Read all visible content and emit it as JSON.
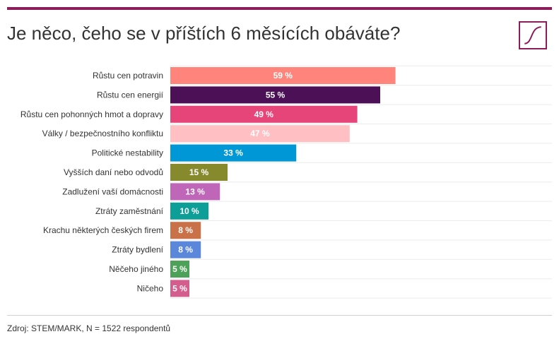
{
  "title": "Je něco, čeho se v příštích 6 měsících obáváte?",
  "source": "Zdroj: STEM/MARK, N = 1522 respondentů",
  "logo_icon": "stem-mark-logo-icon",
  "colors": {
    "accent": "#8c1d5a"
  },
  "chart_data": {
    "type": "bar",
    "orientation": "horizontal",
    "categories": [
      "Růstu cen potravin",
      "Růstu cen energií",
      "Růstu cen pohonných hmot a dopravy",
      "Války / bezpečnostního konfliktu",
      "Politické nestability",
      "Vyšších daní nebo odvodů",
      "Zadlužení vaší domácnosti",
      "Ztráty zaměstnání",
      "Krachu některých českých firem",
      "Ztráty bydlení",
      "Něčeho jiného",
      "Ničeho"
    ],
    "values": [
      59,
      55,
      49,
      47,
      33,
      15,
      13,
      10,
      8,
      8,
      5,
      5
    ],
    "value_labels": [
      "59 %",
      "55 %",
      "49 %",
      "47 %",
      "33 %",
      "15 %",
      "13 %",
      "10 %",
      "8 %",
      "8 %",
      "5 %",
      "5 %"
    ],
    "colors": [
      "#ff847c",
      "#4b1056",
      "#e6457a",
      "#ffbfc3",
      "#0097d6",
      "#868a2c",
      "#c066b9",
      "#0e9e98",
      "#c9724a",
      "#5b87db",
      "#4ea159",
      "#d35e8d"
    ],
    "xlim": [
      0,
      100
    ],
    "grid": true,
    "unit": "%"
  }
}
